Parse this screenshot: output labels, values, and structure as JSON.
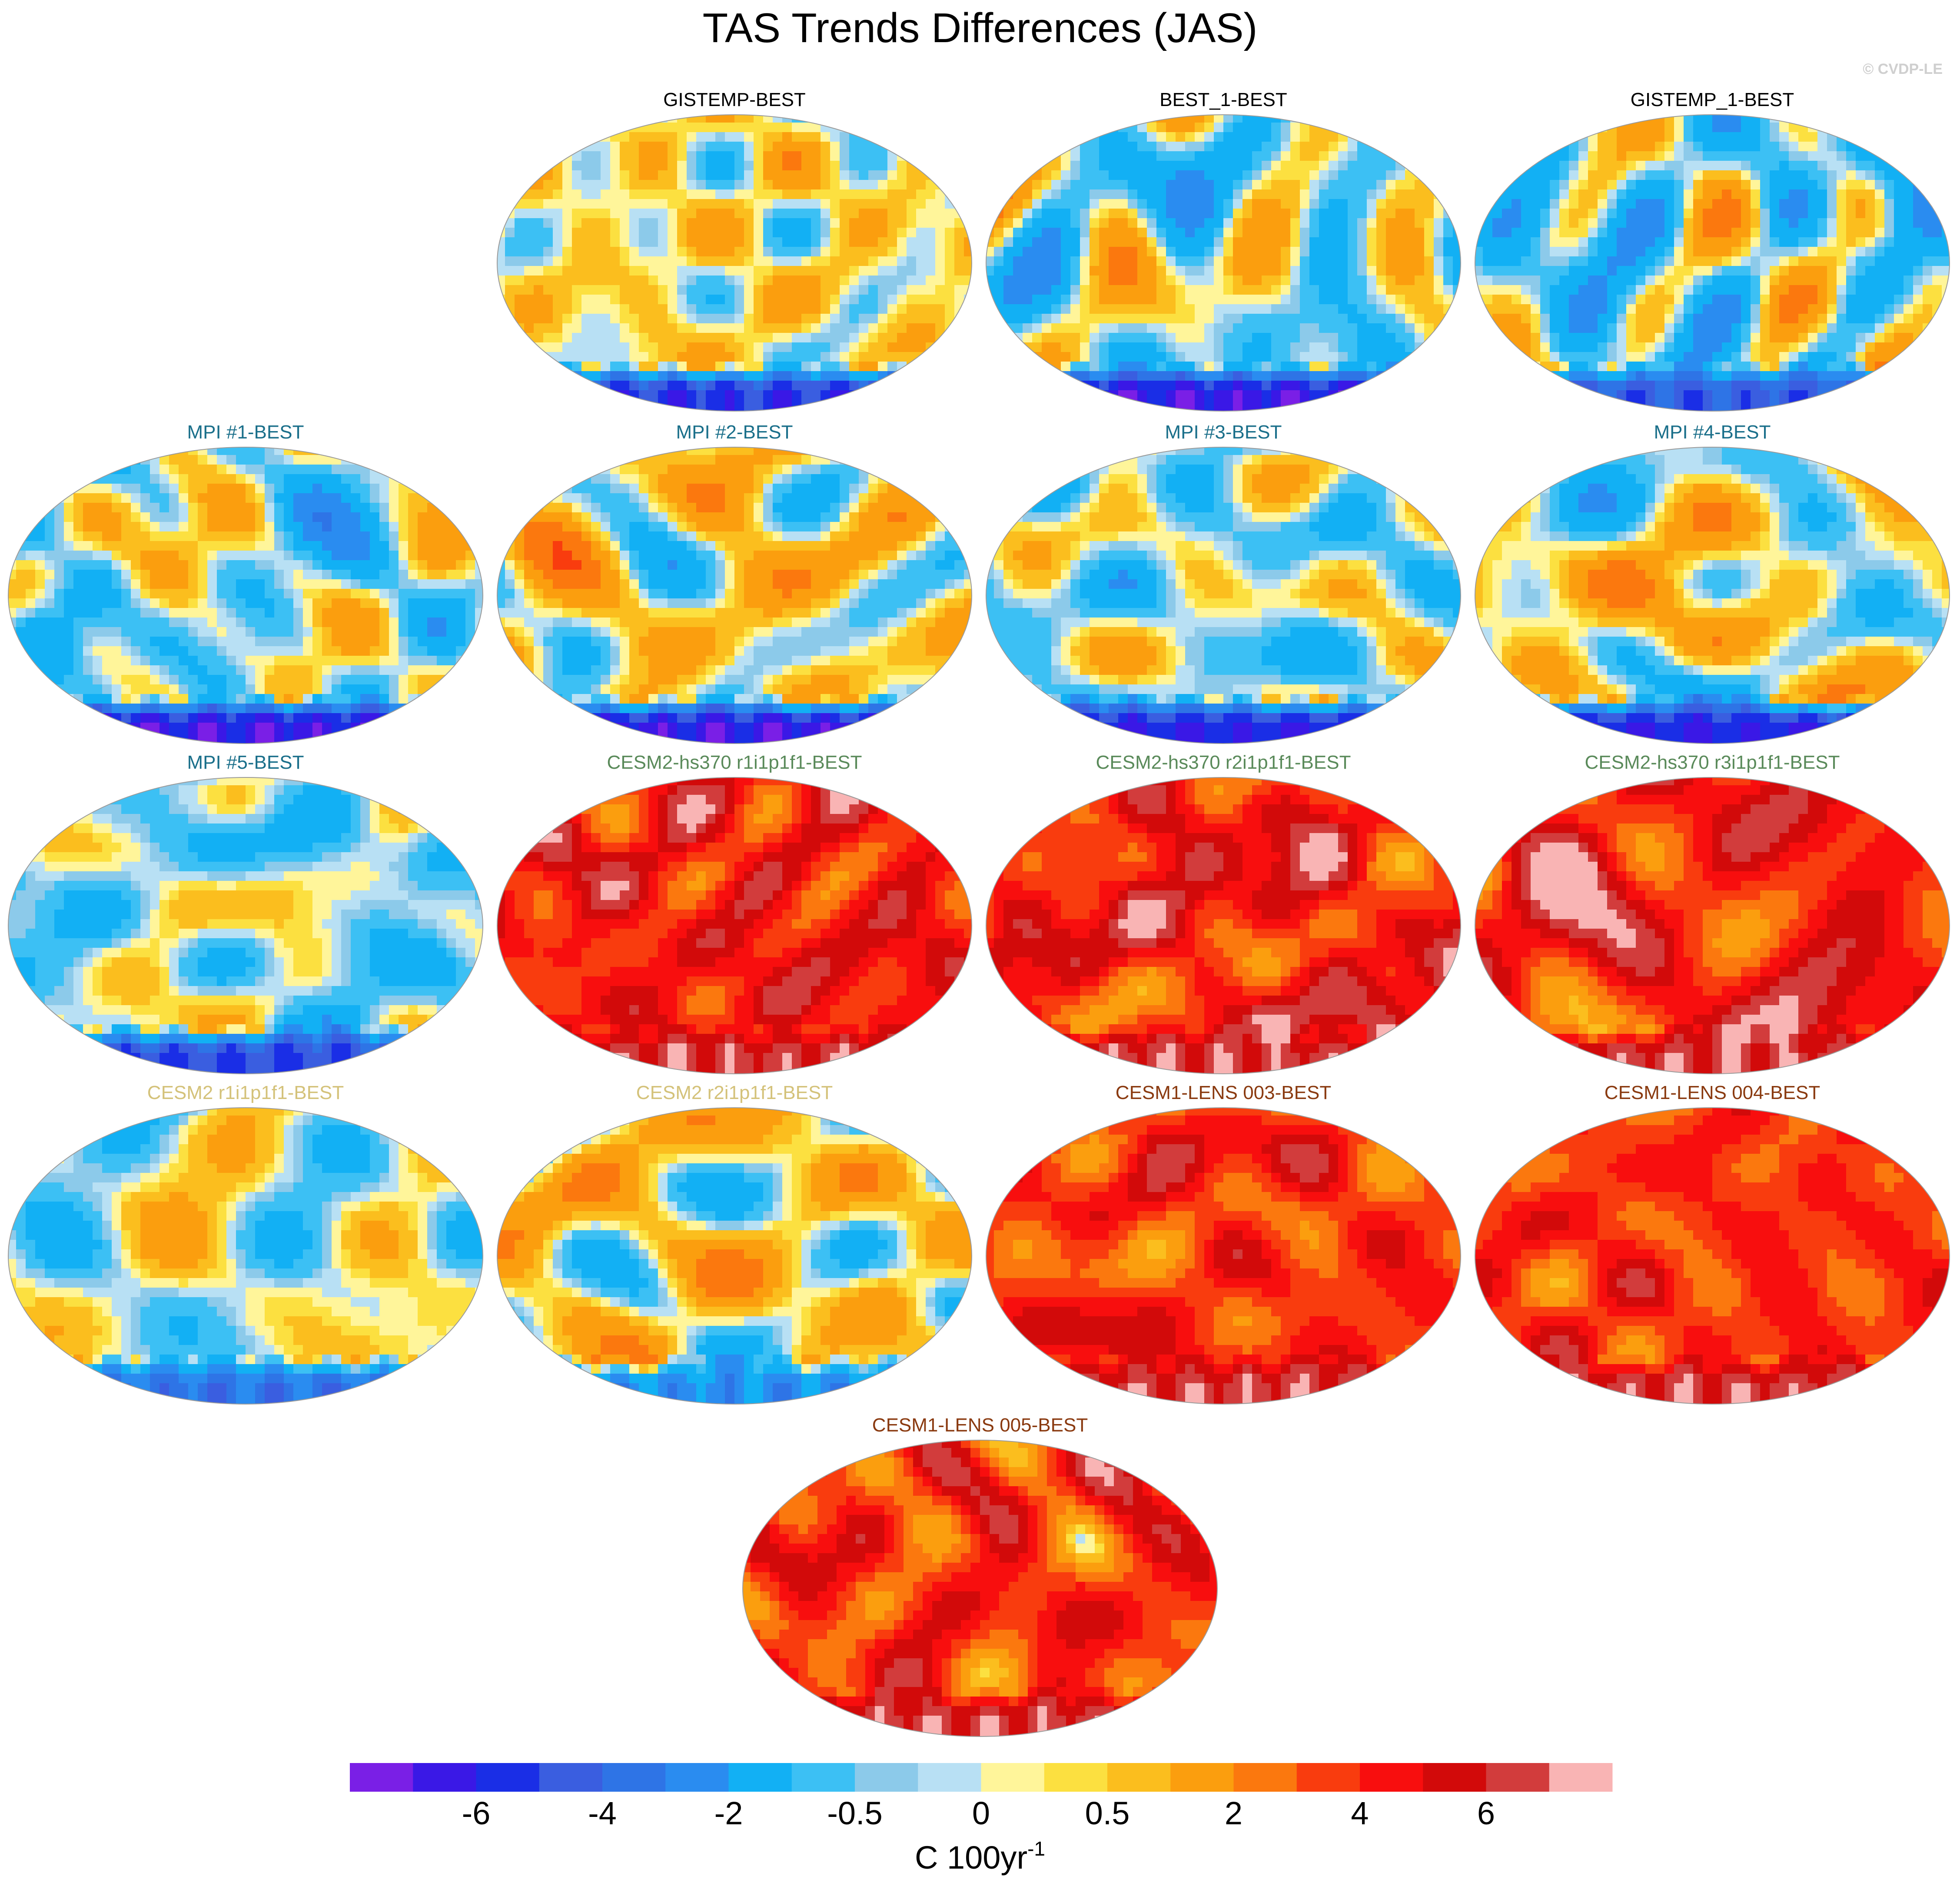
{
  "title": "TAS Trends Differences (JAS)",
  "copyright": "© CVDP-LE",
  "panels": [
    {
      "title": "GISTEMP-BEST",
      "title_color": "#000000",
      "base": 0.3,
      "amp": 0.9,
      "antarctic": -5.5,
      "seed": 3
    },
    {
      "title": "BEST_1-BEST",
      "title_color": "#000000",
      "base": -0.2,
      "amp": 1.0,
      "antarctic": -6.5,
      "seed": 7
    },
    {
      "title": "GISTEMP_1-BEST",
      "title_color": "#000000",
      "base": -0.4,
      "amp": 1.0,
      "antarctic": -4.5,
      "seed": 11
    },
    {
      "title": "MPI #1-BEST",
      "title_color": "#1a6f8a",
      "base": -0.2,
      "amp": 1.0,
      "antarctic": -6.5,
      "seed": 13
    },
    {
      "title": "MPI #2-BEST",
      "title_color": "#1a6f8a",
      "base": 0.4,
      "amp": 1.0,
      "antarctic": -6.5,
      "seed": 17
    },
    {
      "title": "MPI #3-BEST",
      "title_color": "#1a6f8a",
      "base": -0.2,
      "amp": 1.0,
      "antarctic": -6.0,
      "seed": 19
    },
    {
      "title": "MPI #4-BEST",
      "title_color": "#1a6f8a",
      "base": 0.3,
      "amp": 1.0,
      "antarctic": -6.0,
      "seed": 23
    },
    {
      "title": "MPI #5-BEST",
      "title_color": "#1a6f8a",
      "base": -0.3,
      "amp": 1.0,
      "antarctic": -5.0,
      "seed": 29
    },
    {
      "title": "CESM2-hs370 r1i1p1f1-BEST",
      "title_color": "#5a8a5a",
      "base": 4.5,
      "amp": 1.4,
      "antarctic": 6.5,
      "seed": 31
    },
    {
      "title": "CESM2-hs370 r2i1p1f1-BEST",
      "title_color": "#5a8a5a",
      "base": 4.5,
      "amp": 1.4,
      "antarctic": 6.5,
      "seed": 37
    },
    {
      "title": "CESM2-hs370 r3i1p1f1-BEST",
      "title_color": "#5a8a5a",
      "base": 4.5,
      "amp": 1.4,
      "antarctic": 6.5,
      "seed": 41
    },
    {
      "title": "CESM2 r1i1p1f1-BEST",
      "title_color": "#d4c27a",
      "base": 0.0,
      "amp": 1.0,
      "antarctic": -3.5,
      "seed": 43
    },
    {
      "title": "CESM2 r2i1p1f1-BEST",
      "title_color": "#d4c27a",
      "base": 0.4,
      "amp": 1.0,
      "antarctic": -2.5,
      "seed": 47
    },
    {
      "title": "CESM1-LENS 003-BEST",
      "title_color": "#8a3a10",
      "base": 3.8,
      "amp": 1.3,
      "antarctic": 6.5,
      "seed": 53
    },
    {
      "title": "CESM1-LENS 004-BEST",
      "title_color": "#8a3a10",
      "base": 3.8,
      "amp": 1.3,
      "antarctic": 6.5,
      "seed": 59
    },
    {
      "title": "CESM1-LENS 005-BEST",
      "title_color": "#8a3a10",
      "base": 3.8,
      "amp": 1.3,
      "antarctic": 6.5,
      "seed": 61
    }
  ],
  "chart_data": {
    "type": "heatmap",
    "title": "TAS Trends Differences (JAS)",
    "units": "C 100yr-1",
    "colorbar": {
      "levels": [
        -7,
        -6,
        -5,
        -4,
        -3,
        -2,
        -1,
        -0.5,
        -0.25,
        0,
        0.25,
        0.5,
        1,
        2,
        3,
        4,
        5,
        6,
        7
      ],
      "tick_labels": [
        "-6",
        "-4",
        "-2",
        "-0.5",
        "0",
        "0.5",
        "2",
        "4",
        "6"
      ],
      "tick_values": [
        -6,
        -4,
        -2,
        -0.5,
        0,
        0.5,
        2,
        4,
        6
      ],
      "colors": [
        "#7a1fe6",
        "#3a18e6",
        "#1a2ee6",
        "#3a5ee0",
        "#2e74e6",
        "#2a8cf0",
        "#12b0f4",
        "#3cc0f4",
        "#8ccaea",
        "#b8e0f4",
        "#fff59a",
        "#fce040",
        "#fbbe1e",
        "#fb9e0e",
        "#fb780e",
        "#f93c0e",
        "#f80e0e",
        "#d20a0a",
        "#d23c3c",
        "#f9b4b4"
      ]
    }
  },
  "units_label": {
    "main": "C 100yr",
    "sup": "-1"
  }
}
